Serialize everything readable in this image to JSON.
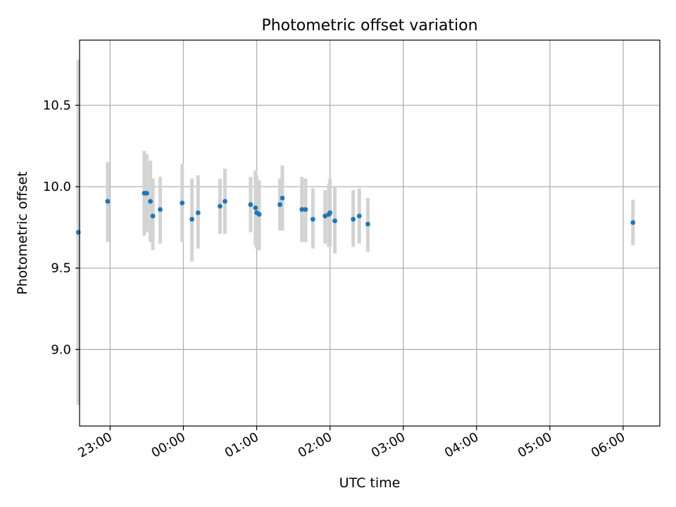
{
  "chart_data": {
    "type": "scatter",
    "title": "Photometric offset variation",
    "xlabel": "UTC time",
    "ylabel": "Photometric offset",
    "x_unit": "UTC time (HH:MM), crossing midnight",
    "xlim": [
      "22:35",
      "06:30"
    ],
    "ylim": [
      8.53,
      10.9
    ],
    "x_ticks": [
      "23:00",
      "00:00",
      "01:00",
      "02:00",
      "03:00",
      "04:00",
      "05:00",
      "06:00"
    ],
    "y_ticks": [
      "9.0",
      "9.5",
      "10.0",
      "10.5"
    ],
    "grid": true,
    "legend": "none",
    "colors": {
      "point": "#1f77b4",
      "errorbar": "#d3d3d3",
      "grid": "#b0b0b0"
    },
    "points": [
      {
        "x": "22:34",
        "y": 9.72,
        "ylow": 8.66,
        "yhigh": 10.78
      },
      {
        "x": "22:58",
        "y": 9.91,
        "ylow": 9.66,
        "yhigh": 10.15
      },
      {
        "x": "23:28",
        "y": 9.96,
        "ylow": 9.7,
        "yhigh": 10.22
      },
      {
        "x": "23:30",
        "y": 9.96,
        "ylow": 9.72,
        "yhigh": 10.2
      },
      {
        "x": "23:33",
        "y": 9.91,
        "ylow": 9.66,
        "yhigh": 10.16
      },
      {
        "x": "23:35",
        "y": 9.82,
        "ylow": 9.61,
        "yhigh": 10.05
      },
      {
        "x": "23:41",
        "y": 9.86,
        "ylow": 9.65,
        "yhigh": 10.06
      },
      {
        "x": "23:59",
        "y": 9.9,
        "ylow": 9.66,
        "yhigh": 10.14
      },
      {
        "x": "00:07",
        "y": 9.8,
        "ylow": 9.54,
        "yhigh": 10.05
      },
      {
        "x": "00:12",
        "y": 9.84,
        "ylow": 9.62,
        "yhigh": 10.07
      },
      {
        "x": "00:30",
        "y": 9.88,
        "ylow": 9.71,
        "yhigh": 10.05
      },
      {
        "x": "00:34",
        "y": 9.91,
        "ylow": 9.71,
        "yhigh": 10.11
      },
      {
        "x": "00:55",
        "y": 9.89,
        "ylow": 9.72,
        "yhigh": 10.06
      },
      {
        "x": "00:59",
        "y": 9.87,
        "ylow": 9.64,
        "yhigh": 10.1
      },
      {
        "x": "01:00",
        "y": 9.84,
        "ylow": 9.62,
        "yhigh": 10.07
      },
      {
        "x": "01:02",
        "y": 9.83,
        "ylow": 9.61,
        "yhigh": 10.04
      },
      {
        "x": "01:19",
        "y": 9.89,
        "ylow": 9.73,
        "yhigh": 10.05
      },
      {
        "x": "01:21",
        "y": 9.93,
        "ylow": 9.73,
        "yhigh": 10.13
      },
      {
        "x": "01:37",
        "y": 9.86,
        "ylow": 9.66,
        "yhigh": 10.06
      },
      {
        "x": "01:40",
        "y": 9.86,
        "ylow": 9.66,
        "yhigh": 10.05
      },
      {
        "x": "01:46",
        "y": 9.8,
        "ylow": 9.62,
        "yhigh": 9.99
      },
      {
        "x": "01:56",
        "y": 9.82,
        "ylow": 9.65,
        "yhigh": 9.98
      },
      {
        "x": "01:59",
        "y": 9.83,
        "ylow": 9.63,
        "yhigh": 10.02
      },
      {
        "x": "02:00",
        "y": 9.84,
        "ylow": 9.63,
        "yhigh": 10.05
      },
      {
        "x": "02:04",
        "y": 9.79,
        "ylow": 9.59,
        "yhigh": 10.0
      },
      {
        "x": "02:19",
        "y": 9.8,
        "ylow": 9.63,
        "yhigh": 9.98
      },
      {
        "x": "02:24",
        "y": 9.82,
        "ylow": 9.65,
        "yhigh": 9.99
      },
      {
        "x": "02:31",
        "y": 9.77,
        "ylow": 9.6,
        "yhigh": 9.93
      },
      {
        "x": "06:08",
        "y": 9.78,
        "ylow": 9.64,
        "yhigh": 9.92
      }
    ]
  }
}
